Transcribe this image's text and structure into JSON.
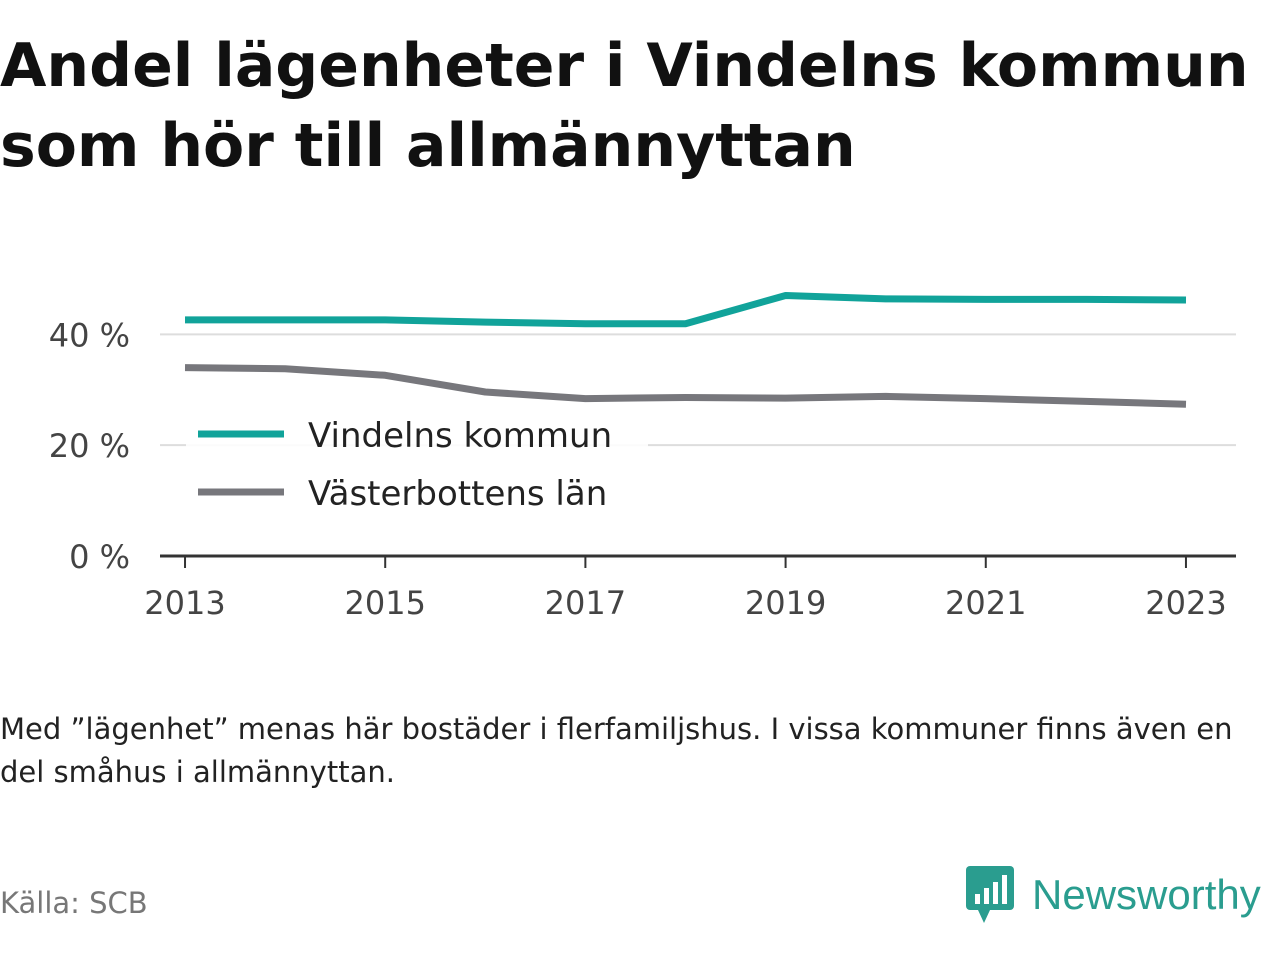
{
  "title": "Andel lägenheter i Vindelns kommun som hör till allmännyttan",
  "note": "Med ”lägenhet” menas här bostäder i flerfamiljshus. I vissa kommuner finns även en del småhus i allmännyttan.",
  "source": "Källa: SCB",
  "brand": {
    "name": "Newsworthy",
    "icon": "newsworthy-logo-icon",
    "color": "#2a9d8f"
  },
  "chart_data": {
    "type": "line",
    "x": [
      2013,
      2014,
      2015,
      2016,
      2017,
      2018,
      2019,
      2020,
      2021,
      2022,
      2023
    ],
    "series": [
      {
        "name": "Vindelns kommun",
        "color": "#11a39a",
        "values": [
          42.6,
          42.6,
          42.6,
          42.2,
          41.9,
          41.9,
          47.0,
          46.4,
          46.3,
          46.3,
          46.2
        ]
      },
      {
        "name": "Västerbottens län",
        "color": "#77777c",
        "values": [
          34.0,
          33.8,
          32.6,
          29.6,
          28.4,
          28.6,
          28.5,
          28.8,
          28.4,
          27.9,
          27.4
        ]
      }
    ],
    "x_ticks": [
      "2013",
      "2015",
      "2017",
      "2019",
      "2021",
      "2023"
    ],
    "y_ticks": [
      {
        "value": 0,
        "label": "0 %"
      },
      {
        "value": 20,
        "label": "20 %"
      },
      {
        "value": 40,
        "label": "40 %"
      }
    ],
    "xlim": [
      2012.75,
      2023.5
    ],
    "ylim": [
      0,
      48
    ],
    "grid": true,
    "legend_position": "bottom-left"
  }
}
